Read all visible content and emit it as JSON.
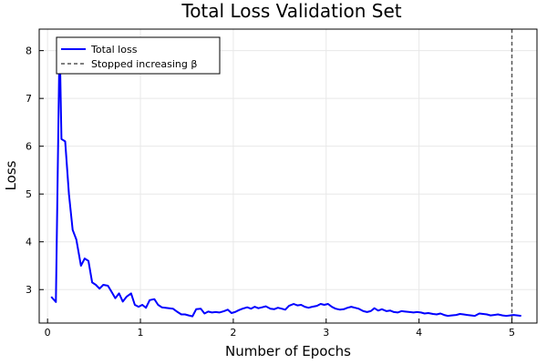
{
  "chart_data": {
    "type": "line",
    "title": "Total Loss Validation Set",
    "xlabel": "Number of Epochs",
    "ylabel": "Loss",
    "xlim": [
      -0.09,
      5.27
    ],
    "ylim": [
      2.3,
      8.45
    ],
    "xticks": [
      0,
      1,
      2,
      3,
      4,
      5
    ],
    "yticks": [
      3,
      4,
      5,
      6,
      7,
      8
    ],
    "grid": true,
    "legend_position": "top-left",
    "series": [
      {
        "name": "Total loss",
        "color": "#0000ff",
        "x": [
          0.04,
          0.09,
          0.13,
          0.15,
          0.19,
          0.23,
          0.27,
          0.31,
          0.36,
          0.4,
          0.44,
          0.48,
          0.52,
          0.56,
          0.6,
          0.65,
          0.69,
          0.73,
          0.77,
          0.81,
          0.85,
          0.9,
          0.94,
          0.98,
          1.02,
          1.06,
          1.1,
          1.15,
          1.19,
          1.23,
          1.27,
          1.31,
          1.35,
          1.4,
          1.44,
          1.48,
          1.52,
          1.56,
          1.6,
          1.65,
          1.69,
          1.73,
          1.77,
          1.81,
          1.85,
          1.9,
          1.94,
          1.98,
          2.02,
          2.06,
          2.1,
          2.15,
          2.19,
          2.23,
          2.27,
          2.31,
          2.35,
          2.4,
          2.44,
          2.48,
          2.52,
          2.56,
          2.6,
          2.65,
          2.69,
          2.73,
          2.77,
          2.81,
          2.85,
          2.9,
          2.94,
          2.98,
          3.02,
          3.06,
          3.1,
          3.15,
          3.19,
          3.23,
          3.27,
          3.31,
          3.35,
          3.4,
          3.44,
          3.48,
          3.52,
          3.56,
          3.6,
          3.65,
          3.69,
          3.73,
          3.77,
          3.81,
          3.85,
          3.9,
          3.94,
          3.98,
          4.02,
          4.06,
          4.1,
          4.15,
          4.19,
          4.23,
          4.27,
          4.31,
          4.35,
          4.4,
          4.44,
          4.48,
          4.52,
          4.56,
          4.6,
          4.65,
          4.69,
          4.73,
          4.77,
          4.81,
          4.85,
          4.9,
          4.94,
          4.98,
          5.02,
          5.06,
          5.1
        ],
        "y": [
          2.85,
          2.74,
          8.25,
          6.15,
          6.1,
          5.0,
          4.25,
          4.05,
          3.5,
          3.65,
          3.6,
          3.15,
          3.1,
          3.02,
          3.1,
          3.08,
          2.95,
          2.82,
          2.92,
          2.75,
          2.85,
          2.92,
          2.68,
          2.64,
          2.68,
          2.62,
          2.78,
          2.8,
          2.68,
          2.63,
          2.62,
          2.61,
          2.6,
          2.53,
          2.48,
          2.48,
          2.46,
          2.44,
          2.59,
          2.6,
          2.5,
          2.54,
          2.52,
          2.53,
          2.52,
          2.55,
          2.58,
          2.51,
          2.53,
          2.57,
          2.6,
          2.63,
          2.6,
          2.64,
          2.61,
          2.63,
          2.65,
          2.6,
          2.59,
          2.62,
          2.6,
          2.58,
          2.66,
          2.7,
          2.67,
          2.68,
          2.64,
          2.62,
          2.64,
          2.66,
          2.7,
          2.68,
          2.7,
          2.64,
          2.6,
          2.58,
          2.59,
          2.62,
          2.64,
          2.62,
          2.6,
          2.55,
          2.53,
          2.55,
          2.61,
          2.56,
          2.59,
          2.55,
          2.56,
          2.53,
          2.52,
          2.55,
          2.54,
          2.53,
          2.52,
          2.53,
          2.52,
          2.5,
          2.51,
          2.49,
          2.48,
          2.5,
          2.47,
          2.45,
          2.46,
          2.47,
          2.49,
          2.48,
          2.47,
          2.46,
          2.45,
          2.5,
          2.49,
          2.48,
          2.46,
          2.47,
          2.48,
          2.46,
          2.45,
          2.46,
          2.47,
          2.46,
          2.45
        ]
      }
    ],
    "vlines": [
      {
        "name": "Stopped increasing β",
        "x": 5.0,
        "color": "#555555",
        "style": "dashed"
      }
    ]
  }
}
